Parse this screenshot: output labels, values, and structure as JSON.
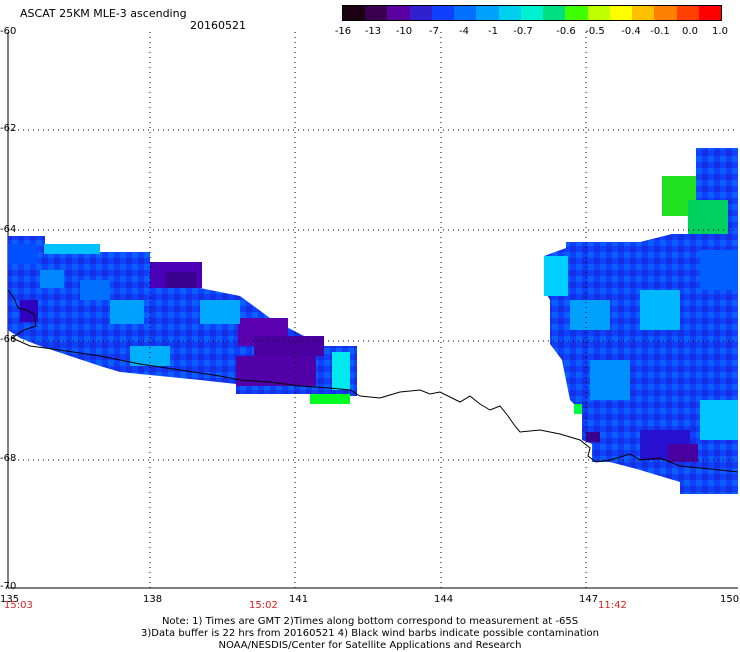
{
  "header": {
    "product": "ASCAT 25KM MLE-3 ascending",
    "date": "20160521"
  },
  "colorbar": {
    "labels": [
      "-16",
      "-13",
      "-10",
      "-7",
      "-4",
      "-1",
      "-0.7",
      "-0.6",
      "-0.5",
      "-0.4",
      "-0.1",
      "0.0",
      "1.0"
    ],
    "colors": [
      "#1a0010",
      "#3a0050",
      "#5a00a0",
      "#3020d0",
      "#1040ff",
      "#0070ff",
      "#00a0ff",
      "#00d0f0",
      "#00f0d0",
      "#00e080",
      "#40ff00",
      "#c0ff00",
      "#ffff00",
      "#ffc000",
      "#ff8000",
      "#ff4000",
      "#ff0000"
    ]
  },
  "axes": {
    "y_labels": [
      "-60",
      "-62",
      "-64",
      "-66",
      "-68",
      "-70"
    ],
    "x_labels": [
      "135",
      "138",
      "141",
      "144",
      "147",
      "150"
    ],
    "times": [
      "15:03",
      "15:02",
      "11:42"
    ]
  },
  "notes": {
    "line1": "Note: 1) Times are GMT 2)Times along bottom correspond to measurement at -65S",
    "line2": "3)Data buffer is 22 hrs from 20160521 4) Black wind barbs indicate possible contamination",
    "line3": "NOAA/NESDIS/Center for Satellite Applications and Research"
  },
  "colors": {
    "swath_blue": "#1040ff",
    "swath_purple": "#5a00b0",
    "swath_cyan": "#00c8ff",
    "swath_green": "#00ff20",
    "time_red": "#d82020"
  }
}
